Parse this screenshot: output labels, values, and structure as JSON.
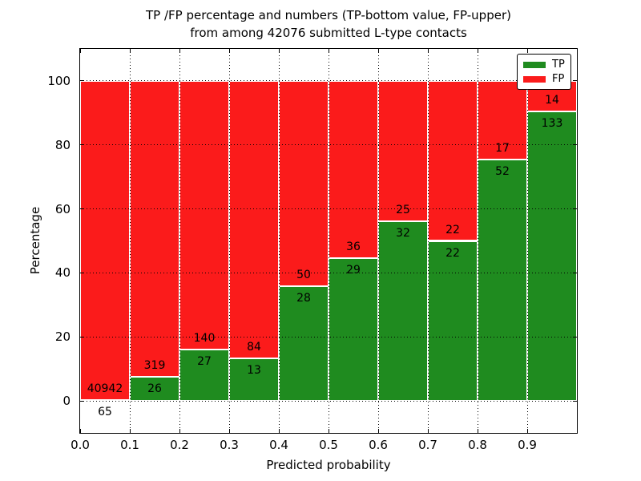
{
  "figure": {
    "title_line1": "TP /FP percentage and numbers (TP-bottom value, FP-upper)",
    "title_line2": "from among 42076 submitted L-type contacts"
  },
  "chart_data": {
    "type": "bar",
    "stacked": true,
    "title": "TP /FP percentage and numbers (TP-bottom value, FP-upper)\nfrom among 42076 submitted L-type contacts",
    "xlabel": "Predicted probability",
    "ylabel": "Percentage",
    "xlim": [
      0.0,
      1.0
    ],
    "ylim": [
      -10,
      110
    ],
    "x_tick_values": [
      0.0,
      0.1,
      0.2,
      0.3,
      0.4,
      0.5,
      0.6,
      0.7,
      0.8,
      0.9
    ],
    "x_tick_labels": [
      "0.0",
      "0.1",
      "0.2",
      "0.3",
      "0.4",
      "0.5",
      "0.6",
      "0.7",
      "0.8",
      "0.9"
    ],
    "y_tick_values": [
      0,
      20,
      40,
      60,
      80,
      100
    ],
    "y_tick_labels": [
      "0",
      "20",
      "40",
      "60",
      "80",
      "100"
    ],
    "grid": "dotted",
    "total_contacts": 42076,
    "series": [
      {
        "name": "TP",
        "color": "#1f8b1f"
      },
      {
        "name": "FP",
        "color": "#fb1b1b"
      }
    ],
    "legend": {
      "position": "upper right"
    },
    "bins": [
      {
        "range": [
          0.0,
          0.1
        ],
        "tp": 65,
        "fp": 40942,
        "tp_pct": 0.16
      },
      {
        "range": [
          0.1,
          0.2
        ],
        "tp": 26,
        "fp": 319,
        "tp_pct": 7.54
      },
      {
        "range": [
          0.2,
          0.3
        ],
        "tp": 27,
        "fp": 140,
        "tp_pct": 16.17
      },
      {
        "range": [
          0.3,
          0.4
        ],
        "tp": 13,
        "fp": 84,
        "tp_pct": 13.4
      },
      {
        "range": [
          0.4,
          0.5
        ],
        "tp": 28,
        "fp": 50,
        "tp_pct": 35.9
      },
      {
        "range": [
          0.5,
          0.6
        ],
        "tp": 29,
        "fp": 36,
        "tp_pct": 44.62
      },
      {
        "range": [
          0.6,
          0.7
        ],
        "tp": 32,
        "fp": 25,
        "tp_pct": 56.14
      },
      {
        "range": [
          0.7,
          0.8
        ],
        "tp": 22,
        "fp": 22,
        "tp_pct": 50.0
      },
      {
        "range": [
          0.8,
          0.9
        ],
        "tp": 52,
        "fp": 17,
        "tp_pct": 75.36
      },
      {
        "range": [
          0.9,
          1.0
        ],
        "tp": 133,
        "fp": 14,
        "tp_pct": 90.48
      }
    ]
  }
}
